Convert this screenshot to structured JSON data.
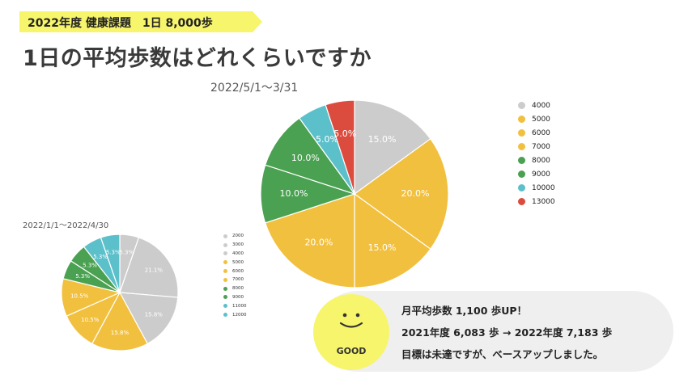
{
  "header": {
    "banner_text": "2022年度 健康課題　1日 8,000歩",
    "title": "1日の平均歩数はどれくらいですか"
  },
  "colors": {
    "banner_bg": "#f7f56b",
    "gray": "#cccccc",
    "yellow": "#f2c03f",
    "green": "#4aa151",
    "cyan": "#5cc0cb",
    "red": "#dc4c3e",
    "note_bg": "#efefef"
  },
  "chart_data": [
    {
      "type": "pie",
      "title": "2022/5/1〜3/31",
      "legend_position": "right",
      "categories": [
        "4000",
        "5000",
        "6000",
        "7000",
        "8000",
        "9000",
        "10000",
        "13000"
      ],
      "legend_colors": [
        "#cccccc",
        "#f2c03f",
        "#f2c03f",
        "#f2c03f",
        "#4aa151",
        "#4aa151",
        "#5cc0cb",
        "#dc4c3e"
      ],
      "slices": [
        {
          "value": 15.0,
          "label": "15.0%",
          "color": "#cccccc"
        },
        {
          "value": 20.0,
          "label": "20.0%",
          "color": "#f2c03f"
        },
        {
          "value": 15.0,
          "label": "15.0%",
          "color": "#f2c03f"
        },
        {
          "value": 20.0,
          "label": "20.0%",
          "color": "#f2c03f"
        },
        {
          "value": 10.0,
          "label": "10.0%",
          "color": "#4aa151"
        },
        {
          "value": 10.0,
          "label": "10.0%",
          "color": "#4aa151"
        },
        {
          "value": 5.0,
          "label": "5.0%",
          "color": "#5cc0cb"
        },
        {
          "value": 5.0,
          "label": "5.0%",
          "color": "#dc4c3e"
        }
      ]
    },
    {
      "type": "pie",
      "title": "2022/1/1〜2022/4/30",
      "legend_position": "right",
      "categories": [
        "2000",
        "3000",
        "4000",
        "5000",
        "6000",
        "7000",
        "8000",
        "9000",
        "11000",
        "12000"
      ],
      "legend_colors": [
        "#cccccc",
        "#cccccc",
        "#cccccc",
        "#f2c03f",
        "#f2c03f",
        "#f2c03f",
        "#4aa151",
        "#4aa151",
        "#5cc0cb",
        "#5cc0cb"
      ],
      "slices": [
        {
          "value": 5.3,
          "label": "5.3%",
          "color": "#cccccc"
        },
        {
          "value": 21.1,
          "label": "21.1%",
          "color": "#cccccc"
        },
        {
          "value": 15.8,
          "label": "15.8%",
          "color": "#cccccc"
        },
        {
          "value": 15.8,
          "label": "15.8%",
          "color": "#f2c03f"
        },
        {
          "value": 10.5,
          "label": "10.5%",
          "color": "#f2c03f"
        },
        {
          "value": 10.5,
          "label": "10.5%",
          "color": "#f2c03f"
        },
        {
          "value": 5.3,
          "label": "5.3%",
          "color": "#4aa151"
        },
        {
          "value": 5.3,
          "label": "5.3%",
          "color": "#4aa151"
        },
        {
          "value": 5.3,
          "label": "5.3%",
          "color": "#5cc0cb"
        },
        {
          "value": 5.3,
          "label": "5.3%",
          "color": "#5cc0cb"
        }
      ]
    }
  ],
  "note": {
    "face_label": "GOOD",
    "line1": "月平均歩数 1,100 歩UP！",
    "line2": "2021年度 6,083 歩 → 2022年度 7,183 歩",
    "line3": "目標は未達ですが、ベースアップしました。"
  }
}
